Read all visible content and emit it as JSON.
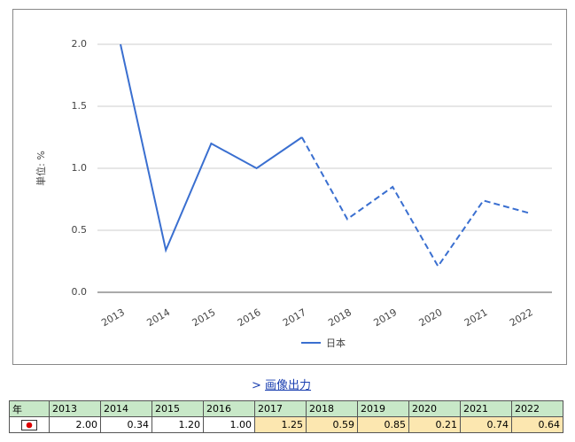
{
  "chart_data": {
    "type": "line",
    "ylabel": "単位: %",
    "categories": [
      "2013",
      "2014",
      "2015",
      "2016",
      "2017",
      "2018",
      "2019",
      "2020",
      "2021",
      "2022"
    ],
    "series": [
      {
        "name": "日本",
        "color": "#3a6fd0",
        "values": [
          2.0,
          0.34,
          1.2,
          1.0,
          1.25,
          0.59,
          0.85,
          0.21,
          0.74,
          0.64
        ],
        "dash_from": "2017"
      }
    ],
    "ylim": [
      0,
      2
    ],
    "yticks": [
      {
        "value": 0,
        "label": "0.0"
      },
      {
        "value": 0.5,
        "label": "0.5"
      },
      {
        "value": 1,
        "label": "1.0"
      },
      {
        "value": 1.5,
        "label": "1.5"
      },
      {
        "value": 2,
        "label": "2.0"
      }
    ],
    "grid": true,
    "legend": "bottom"
  },
  "link": "画像出力",
  "table": {
    "header": [
      "年",
      "2013",
      "2014",
      "2015",
      "2016",
      "2017",
      "2018",
      "2019",
      "2020",
      "2021",
      "2022"
    ],
    "row": [
      "2.00",
      "0.34",
      "1.20",
      "1.00",
      "1.25",
      "0.59",
      "0.85",
      "0.21",
      "0.74",
      "0.64"
    ]
  }
}
